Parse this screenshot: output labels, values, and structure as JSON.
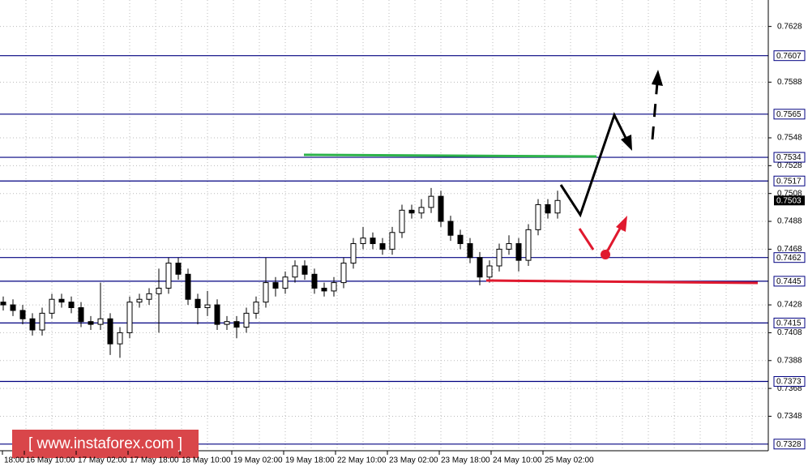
{
  "chart_data": {
    "type": "candlestick",
    "ylim": [
      0.7311,
      0.7647
    ],
    "yticks": [
      0.7628,
      0.7588,
      0.7548,
      0.7528,
      0.7508,
      0.7488,
      0.7468,
      0.7428,
      0.7408,
      0.7388,
      0.7368,
      0.7348
    ],
    "levels": [
      0.7607,
      0.7565,
      0.7534,
      0.7517,
      0.7462,
      0.7445,
      0.7415,
      0.7373,
      0.7328
    ],
    "current_price": 0.7503,
    "x_labels": [
      "18:00",
      "16 May 10:00",
      "17 May 02:00",
      "17 May 18:00",
      "18 May 10:00",
      "19 May 02:00",
      "19 May 18:00",
      "22 May 10:00",
      "23 May 02:00",
      "23 May 18:00",
      "24 May 10:00",
      "25 May 02:00"
    ],
    "watermark": "[ www.instaforex.com ]",
    "ohlc": [
      [
        0.743,
        0.7434,
        0.7424,
        0.7428
      ],
      [
        0.7428,
        0.7432,
        0.742,
        0.7424
      ],
      [
        0.7424,
        0.7428,
        0.7414,
        0.7418
      ],
      [
        0.7418,
        0.7422,
        0.7406,
        0.741
      ],
      [
        0.741,
        0.7426,
        0.7406,
        0.7422
      ],
      [
        0.7422,
        0.7436,
        0.7418,
        0.7432
      ],
      [
        0.7432,
        0.7436,
        0.7426,
        0.743
      ],
      [
        0.743,
        0.7434,
        0.7422,
        0.7426
      ],
      [
        0.7426,
        0.743,
        0.7412,
        0.7416
      ],
      [
        0.7416,
        0.742,
        0.741,
        0.7414
      ],
      [
        0.7414,
        0.7444,
        0.741,
        0.7418
      ],
      [
        0.7418,
        0.7422,
        0.7392,
        0.74
      ],
      [
        0.74,
        0.7412,
        0.739,
        0.7408
      ],
      [
        0.7408,
        0.7434,
        0.7404,
        0.743
      ],
      [
        0.743,
        0.7436,
        0.7426,
        0.7432
      ],
      [
        0.7432,
        0.744,
        0.7428,
        0.7436
      ],
      [
        0.7436,
        0.7454,
        0.7408,
        0.744
      ],
      [
        0.744,
        0.7462,
        0.7436,
        0.7458
      ],
      [
        0.7458,
        0.7462,
        0.7446,
        0.745
      ],
      [
        0.745,
        0.7454,
        0.7428,
        0.7432
      ],
      [
        0.7432,
        0.7436,
        0.7414,
        0.7426
      ],
      [
        0.7426,
        0.7438,
        0.742,
        0.7428
      ],
      [
        0.7428,
        0.7432,
        0.741,
        0.7414
      ],
      [
        0.7414,
        0.742,
        0.741,
        0.7416
      ],
      [
        0.7416,
        0.742,
        0.7404,
        0.7412
      ],
      [
        0.7412,
        0.7426,
        0.7408,
        0.7422
      ],
      [
        0.7422,
        0.7434,
        0.7418,
        0.743
      ],
      [
        0.743,
        0.7462,
        0.7426,
        0.7444
      ],
      [
        0.7444,
        0.7448,
        0.7434,
        0.744
      ],
      [
        0.744,
        0.7452,
        0.7436,
        0.7448
      ],
      [
        0.7448,
        0.746,
        0.7444,
        0.7456
      ],
      [
        0.7456,
        0.746,
        0.7446,
        0.745
      ],
      [
        0.745,
        0.7454,
        0.7436,
        0.744
      ],
      [
        0.744,
        0.7444,
        0.7434,
        0.7438
      ],
      [
        0.7438,
        0.7448,
        0.7434,
        0.7444
      ],
      [
        0.7444,
        0.7462,
        0.744,
        0.7458
      ],
      [
        0.7458,
        0.7476,
        0.7454,
        0.7472
      ],
      [
        0.7472,
        0.7484,
        0.7468,
        0.7476
      ],
      [
        0.7476,
        0.748,
        0.7468,
        0.7472
      ],
      [
        0.7472,
        0.7476,
        0.7464,
        0.7468
      ],
      [
        0.7468,
        0.7484,
        0.7464,
        0.748
      ],
      [
        0.748,
        0.75,
        0.7476,
        0.7496
      ],
      [
        0.7496,
        0.75,
        0.749,
        0.7494
      ],
      [
        0.7494,
        0.7504,
        0.749,
        0.7498
      ],
      [
        0.7498,
        0.7512,
        0.7494,
        0.7506
      ],
      [
        0.7506,
        0.751,
        0.7484,
        0.7488
      ],
      [
        0.7488,
        0.7492,
        0.7474,
        0.7478
      ],
      [
        0.7478,
        0.7482,
        0.7468,
        0.7472
      ],
      [
        0.7472,
        0.7476,
        0.7458,
        0.7462
      ],
      [
        0.7462,
        0.7466,
        0.7442,
        0.7448
      ],
      [
        0.7448,
        0.746,
        0.7444,
        0.7456
      ],
      [
        0.7456,
        0.7472,
        0.7452,
        0.7468
      ],
      [
        0.7468,
        0.7478,
        0.7464,
        0.7472
      ],
      [
        0.7472,
        0.7476,
        0.7452,
        0.746
      ],
      [
        0.746,
        0.7486,
        0.7456,
        0.7482
      ],
      [
        0.7482,
        0.7504,
        0.7478,
        0.75
      ],
      [
        0.75,
        0.7504,
        0.749,
        0.7494
      ],
      [
        0.7494,
        0.751,
        0.749,
        0.7503
      ]
    ]
  }
}
